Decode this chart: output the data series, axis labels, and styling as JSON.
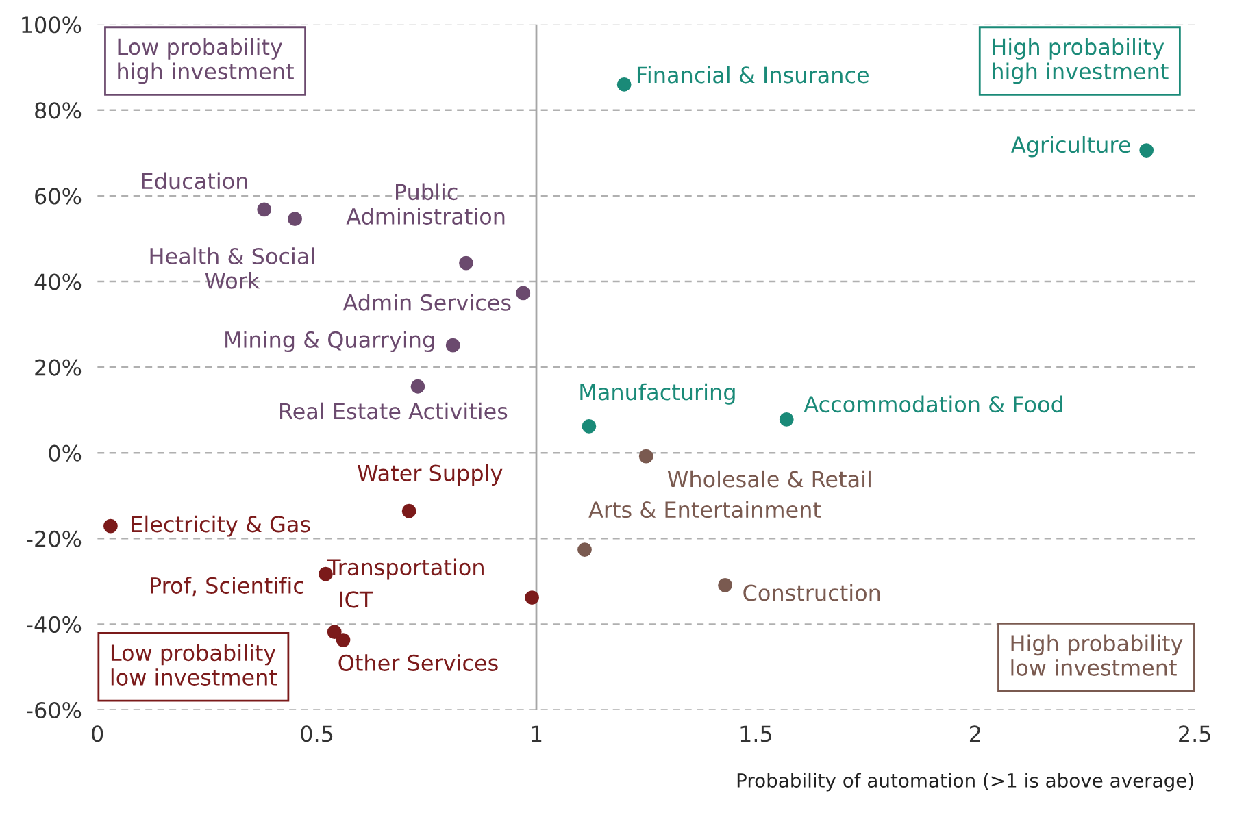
{
  "chart_data": {
    "type": "scatter",
    "xlabel": "Probability of automation (>1 is above average)",
    "xlim": [
      0,
      2.5
    ],
    "xticks": [
      0,
      0.5,
      1,
      1.5,
      2,
      2.5
    ],
    "ylim": [
      -60,
      100
    ],
    "yticks": [
      {
        "value": -60,
        "label": "-60%"
      },
      {
        "value": -40,
        "label": "-40%"
      },
      {
        "value": -20,
        "label": "-20%"
      },
      {
        "value": 0,
        "label": "0%"
      },
      {
        "value": 20,
        "label": "20%"
      },
      {
        "value": 40,
        "label": "40%"
      },
      {
        "value": 60,
        "label": "60%"
      },
      {
        "value": 80,
        "label": "80%"
      },
      {
        "value": 100,
        "label": "100%"
      }
    ],
    "grid": "y",
    "marker": "circle",
    "legend": false,
    "ref_lines": [
      {
        "axis": "x",
        "value": 1,
        "color": "#a6a6a6",
        "line_style": "solid"
      }
    ],
    "series": [
      {
        "color": "#1a8a78",
        "x": [
          1.2,
          2.39,
          1.12,
          1.57
        ],
        "values": [
          86,
          70.6,
          6.2,
          7.8
        ]
      },
      {
        "color": "#6b4a6e",
        "x": [
          0.38,
          0.45,
          0.84,
          0.97,
          0.81,
          0.73
        ],
        "values": [
          56.8,
          54.6,
          44.3,
          37.3,
          25.1,
          15.5
        ]
      },
      {
        "color": "#7b1a1a",
        "x": [
          0.71,
          0.03,
          0.52,
          0.99,
          0.54,
          0.56
        ],
        "values": [
          -13.6,
          -17.1,
          -28.3,
          -33.8,
          -41.8,
          -43.7
        ]
      },
      {
        "color": "#7a5a50",
        "x": [
          1.25,
          1.11,
          1.43
        ],
        "values": [
          -0.8,
          -22.6,
          -30.9
        ]
      }
    ],
    "annotations": [
      {
        "text": "Financial & Insurance",
        "x": 1.2,
        "y": 86
      },
      {
        "text": "Agriculture",
        "x": 2.39,
        "y": 70.6
      },
      {
        "text": "Manufacturing",
        "x": 1.12,
        "y": 6.2
      },
      {
        "text": "Accommodation & Food",
        "x": 1.57,
        "y": 7.8
      },
      {
        "text": "Education",
        "x": 0.38,
        "y": 56.8
      },
      {
        "text": "Health & Social\nWork",
        "x": 0.45,
        "y": 54.6
      },
      {
        "text": "Public\nAdministration",
        "x": 0.84,
        "y": 44.3
      },
      {
        "text": "Admin Services",
        "x": 0.97,
        "y": 37.3
      },
      {
        "text": "Mining & Quarrying",
        "x": 0.81,
        "y": 25.1
      },
      {
        "text": "Real Estate Activities",
        "x": 0.73,
        "y": 15.5
      },
      {
        "text": "Water Supply",
        "x": 0.71,
        "y": -13.6
      },
      {
        "text": "Electricity & Gas",
        "x": 0.03,
        "y": -17.1
      },
      {
        "text": "Prof, Scientific",
        "x": 0.52,
        "y": -28.3
      },
      {
        "text": "Transportation",
        "x": 0.99,
        "y": -33.8
      },
      {
        "text": "ICT",
        "x": 0.54,
        "y": -41.8
      },
      {
        "text": "Other Services",
        "x": 0.56,
        "y": -43.7
      },
      {
        "text": "Wholesale & Retail",
        "x": 1.25,
        "y": -0.8
      },
      {
        "text": "Arts & Entertainment",
        "x": 1.11,
        "y": -22.6
      },
      {
        "text": "Construction",
        "x": 1.43,
        "y": -30.9
      },
      "Low probability\nhigh investment",
      "High probability\nhigh investment",
      "Low probability\nlow investment",
      "High probability\nlow investment"
    ]
  }
}
